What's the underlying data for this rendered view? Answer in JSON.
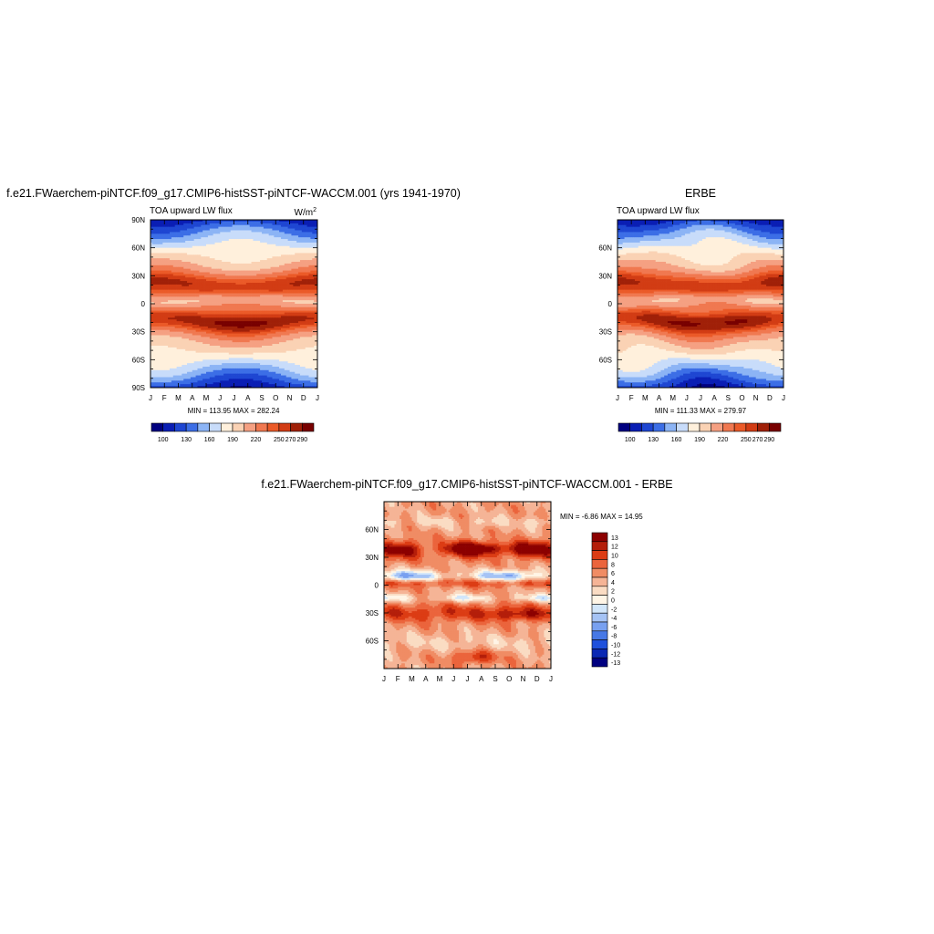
{
  "chart_data": [
    {
      "type": "heatmap",
      "title": "f.e21.FWaerchem-piNTCF.f09_g17.CMIP6-histSST-piNTCF-WACCM.001 (yrs 1941-1970)",
      "subtitle_left": "TOA upward LW flux",
      "units_base": "W/m",
      "units_exp": "2",
      "stats": "MIN = 113.95 MAX = 282.24",
      "x_ticks": [
        "J",
        "F",
        "M",
        "A",
        "M",
        "J",
        "J",
        "A",
        "S",
        "O",
        "N",
        "D",
        "J"
      ],
      "y_ticks": [
        "90N",
        "60N",
        "30N",
        "0",
        "30S",
        "60S",
        "90S"
      ],
      "colorbar_labels": [
        "100",
        "130",
        "160",
        "190",
        "220",
        "250",
        "270",
        "290"
      ],
      "variant": 0
    },
    {
      "type": "heatmap",
      "title": "ERBE",
      "subtitle_left": "TOA upward LW flux",
      "stats": "MIN = 111.33 MAX = 279.97",
      "x_ticks": [
        "J",
        "F",
        "M",
        "A",
        "M",
        "J",
        "J",
        "A",
        "S",
        "O",
        "N",
        "D",
        "J"
      ],
      "y_ticks": [
        "60N",
        "30N",
        "0",
        "30S",
        "60S"
      ],
      "colorbar_labels": [
        "100",
        "130",
        "160",
        "190",
        "220",
        "250",
        "270",
        "290"
      ],
      "variant": 1
    },
    {
      "type": "heatmap",
      "title": "f.e21.FWaerchem-piNTCF.f09_g17.CMIP6-histSST-piNTCF-WACCM.001 - ERBE",
      "stats": "MIN =  -6.86 MAX =  14.95",
      "x_ticks": [
        "J",
        "F",
        "M",
        "A",
        "M",
        "J",
        "J",
        "A",
        "S",
        "O",
        "N",
        "D",
        "J"
      ],
      "y_ticks": [
        "60N",
        "30N",
        "0",
        "30S",
        "60S"
      ],
      "colorbar_labels": [
        "13",
        "12",
        "10",
        "8",
        "6",
        "4",
        "2",
        "0",
        "-2",
        "-4",
        "-6",
        "-8",
        "-10",
        "-12",
        "-13"
      ]
    }
  ],
  "colors": {
    "abs_scale": [
      "#000080",
      "#0a1eb4",
      "#1e46d2",
      "#3c6ee6",
      "#8cb4f5",
      "#c8dcfa",
      "#fff0dc",
      "#fad2b4",
      "#f5a082",
      "#f07850",
      "#eb5a28",
      "#d23c14",
      "#a02008",
      "#780000"
    ],
    "diff_scale": [
      "#000080",
      "#0a28b4",
      "#1e50dc",
      "#4678e6",
      "#78a0f0",
      "#a5c3f5",
      "#d2e6fa",
      "#fff5e6",
      "#fadcc3",
      "#f5b496",
      "#f08c64",
      "#eb643c",
      "#dc3c14",
      "#b41e0a",
      "#8c0000"
    ]
  }
}
